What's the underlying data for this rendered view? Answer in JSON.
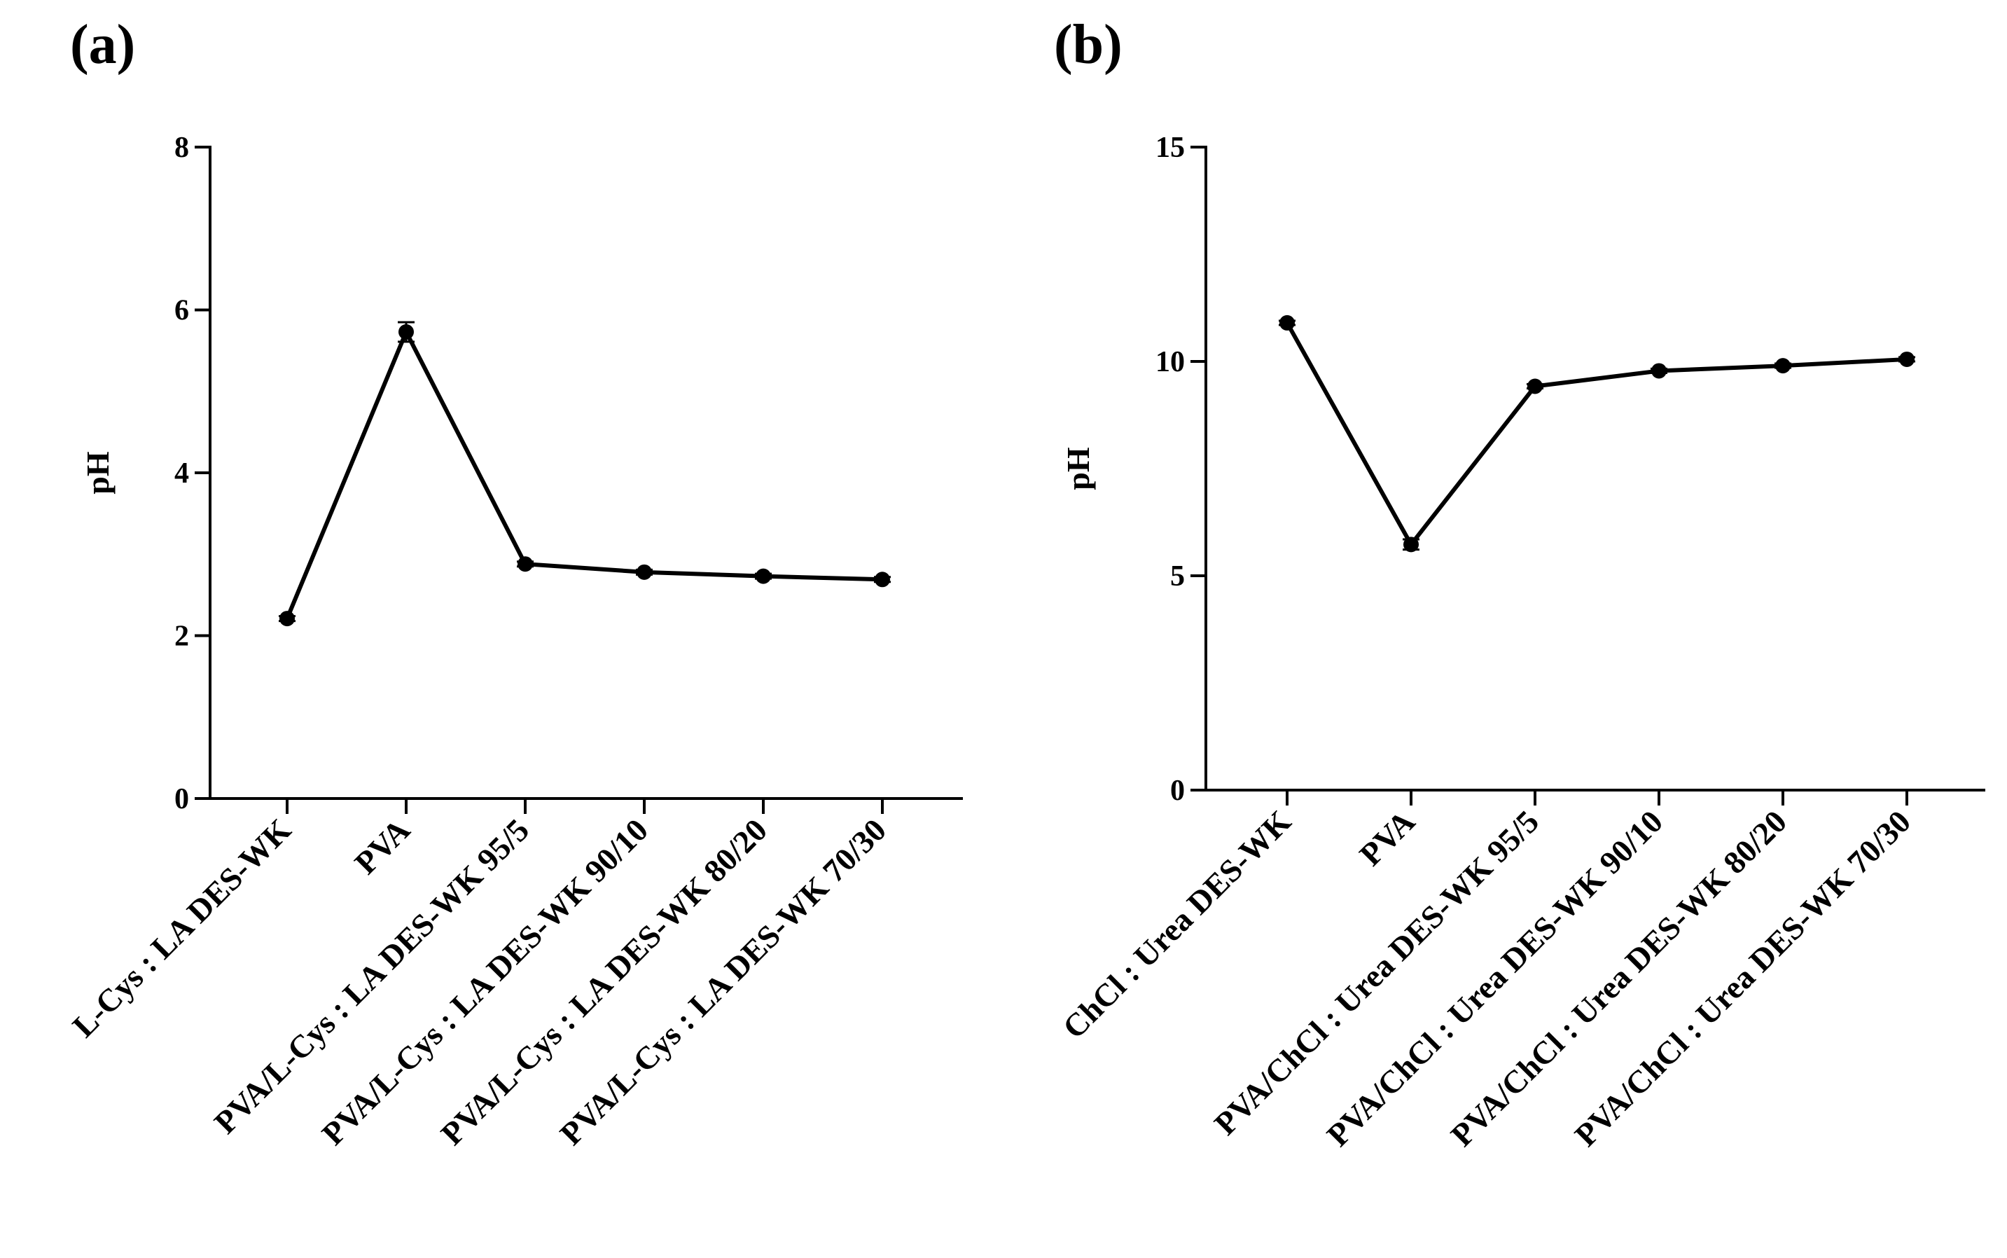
{
  "figure": {
    "panels": [
      "(a)",
      "(b)"
    ]
  },
  "chart_data": [
    {
      "type": "line",
      "panel_label": "(a)",
      "title": "",
      "xlabel": "",
      "ylabel": "pH",
      "ylim": [
        0,
        8
      ],
      "yticks": [
        "0",
        "2",
        "4",
        "6",
        "8"
      ],
      "categories": [
        "L-Cys : LA DES-WK",
        "PVA",
        "PVA/L-Cys : LA DES-WK 95/5",
        "PVA/L-Cys : LA DES-WK 90/10",
        "PVA/L-Cys : LA DES-WK 80/20",
        "PVA/L-Cys : LA DES-WK 70/30"
      ],
      "series": [
        {
          "values": [
            2.21,
            5.73,
            2.88,
            2.78,
            2.73,
            2.69
          ],
          "errors": [
            0.03,
            0.12,
            0.03,
            0.03,
            0.03,
            0.03
          ]
        }
      ],
      "grid": false,
      "legend": "none"
    },
    {
      "type": "line",
      "panel_label": "(b)",
      "title": "",
      "xlabel": "",
      "ylabel": "pH",
      "ylim": [
        0,
        15
      ],
      "yticks": [
        "0",
        "5",
        "10",
        "15"
      ],
      "categories": [
        "ChCl : Urea DES-WK",
        "PVA",
        "PVA/ChCl : Urea DES-WK 95/5",
        "PVA/ChCl : Urea DES-WK 90/10",
        "PVA/ChCl : Urea DES-WK 80/20",
        "PVA/ChCl : Urea DES-WK 70/30"
      ],
      "series": [
        {
          "values": [
            10.9,
            5.73,
            9.42,
            9.78,
            9.9,
            10.05
          ],
          "errors": [
            0.05,
            0.12,
            0.05,
            0.05,
            0.05,
            0.05
          ]
        }
      ],
      "grid": false,
      "legend": "none"
    }
  ]
}
